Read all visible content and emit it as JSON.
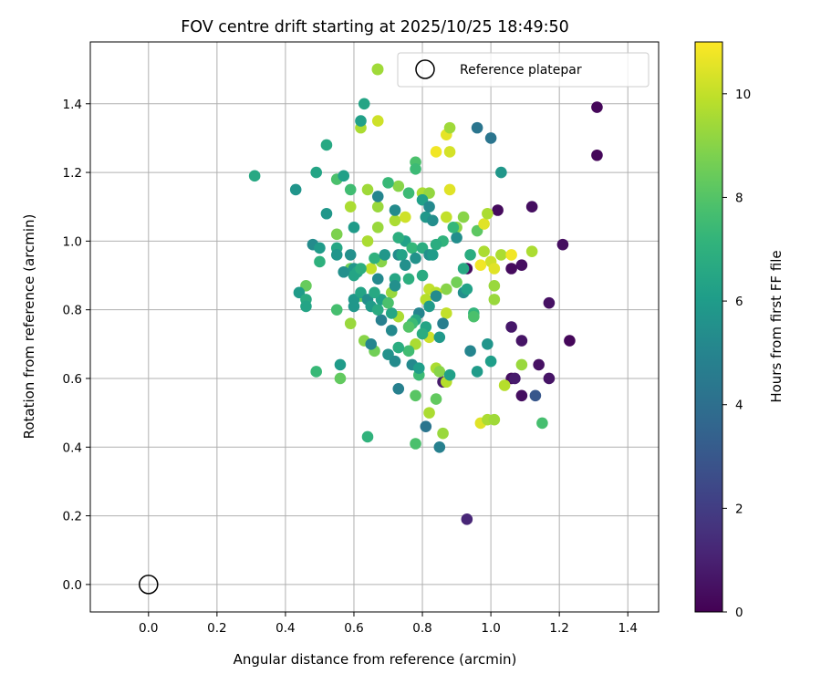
{
  "chart_data": {
    "type": "scatter",
    "title": "FOV centre drift starting at 2025/10/25 18:49:50",
    "xlabel": "Angular distance from reference (arcmin)",
    "ylabel": "Rotation from reference (arcmin)",
    "xlim": [
      -0.17,
      1.49
    ],
    "ylim": [
      -0.08,
      1.58
    ],
    "xticks": [
      "0.0",
      "0.2",
      "0.4",
      "0.6",
      "0.8",
      "1.0",
      "1.2",
      "1.4"
    ],
    "xtick_values": [
      0.0,
      0.2,
      0.4,
      0.6,
      0.8,
      1.0,
      1.2,
      1.4
    ],
    "yticks": [
      "0.0",
      "0.2",
      "0.4",
      "0.6",
      "0.8",
      "1.0",
      "1.2",
      "1.4"
    ],
    "ytick_values": [
      0.0,
      0.2,
      0.4,
      0.6,
      0.8,
      1.0,
      1.2,
      1.4
    ],
    "grid": true,
    "legend": {
      "placement": "top-right",
      "entries": [
        {
          "marker": "filled-circle",
          "color": "#a0da39",
          "label": ""
        },
        {
          "marker": "hollow-circle",
          "color": "#000000",
          "label": "Reference platepar"
        }
      ]
    },
    "colorbar": {
      "label": "Hours from first FF file",
      "colormap": "viridis",
      "range": [
        0,
        11
      ],
      "ticks": [
        "0",
        "2",
        "4",
        "6",
        "8",
        "10"
      ],
      "tick_values": [
        0,
        2,
        4,
        6,
        8,
        10
      ]
    },
    "reference_point": {
      "x": 0.0,
      "y": 0.0,
      "label": "Reference platepar"
    },
    "points": [
      [
        1.31,
        1.39,
        0.2
      ],
      [
        1.31,
        1.25,
        0.2
      ],
      [
        1.21,
        0.99,
        0.4
      ],
      [
        1.12,
        1.1,
        0.4
      ],
      [
        1.02,
        1.09,
        0.3
      ],
      [
        1.17,
        0.82,
        0.5
      ],
      [
        1.23,
        0.71,
        0.2
      ],
      [
        1.09,
        0.93,
        0.4
      ],
      [
        1.06,
        0.92,
        0.3
      ],
      [
        0.93,
        0.92,
        0.3
      ],
      [
        1.06,
        0.75,
        0.7
      ],
      [
        1.09,
        0.71,
        0.6
      ],
      [
        1.14,
        0.64,
        0.5
      ],
      [
        1.17,
        0.6,
        0.6
      ],
      [
        1.06,
        0.6,
        0.4
      ],
      [
        1.07,
        0.6,
        0.8
      ],
      [
        1.09,
        0.55,
        0.4
      ],
      [
        1.13,
        0.55,
        3.0
      ],
      [
        0.86,
        0.59,
        0.8
      ],
      [
        0.93,
        0.19,
        1.2
      ],
      [
        0.64,
        1.15,
        9.4
      ],
      [
        0.76,
        1.14,
        7.5
      ],
      [
        0.73,
        1.16,
        9.0
      ],
      [
        0.62,
        1.33,
        9.6
      ],
      [
        0.67,
        1.35,
        10.2
      ],
      [
        0.87,
        1.31,
        10.6
      ],
      [
        0.88,
        1.33,
        9.4
      ],
      [
        0.84,
        1.26,
        10.8
      ],
      [
        0.88,
        1.26,
        10.3
      ],
      [
        0.88,
        1.15,
        10.5
      ],
      [
        0.87,
        1.07,
        10.0
      ],
      [
        0.9,
        1.04,
        9.1
      ],
      [
        0.92,
        1.07,
        9.0
      ],
      [
        0.96,
        1.03,
        8.2
      ],
      [
        0.98,
        1.05,
        10.5
      ],
      [
        0.99,
        1.08,
        9.6
      ],
      [
        0.98,
        0.97,
        9.6
      ],
      [
        1.0,
        0.94,
        10.2
      ],
      [
        1.01,
        0.92,
        10.5
      ],
      [
        1.03,
        0.96,
        9.6
      ],
      [
        1.06,
        0.96,
        10.8
      ],
      [
        1.12,
        0.97,
        9.6
      ],
      [
        0.97,
        0.93,
        10.8
      ],
      [
        1.01,
        0.87,
        9.3
      ],
      [
        1.01,
        0.83,
        9.3
      ],
      [
        0.9,
        0.88,
        8.6
      ],
      [
        0.87,
        0.86,
        9.0
      ],
      [
        0.82,
        0.86,
        10.0
      ],
      [
        0.84,
        0.85,
        9.8
      ],
      [
        0.87,
        0.79,
        10.0
      ],
      [
        0.81,
        0.83,
        9.8
      ],
      [
        0.82,
        0.72,
        10.2
      ],
      [
        0.78,
        0.7,
        9.6
      ],
      [
        0.84,
        0.63,
        9.6
      ],
      [
        0.85,
        0.62,
        9.0
      ],
      [
        0.87,
        0.59,
        9.8
      ],
      [
        0.82,
        0.5,
        9.6
      ],
      [
        0.86,
        0.44,
        9.3
      ],
      [
        0.97,
        0.47,
        10.5
      ],
      [
        0.99,
        0.48,
        9.6
      ],
      [
        1.01,
        0.48,
        9.4
      ],
      [
        1.04,
        0.58,
        9.8
      ],
      [
        1.09,
        0.64,
        9.3
      ],
      [
        1.15,
        0.47,
        7.7
      ],
      [
        0.67,
        1.1,
        9.3
      ],
      [
        0.72,
        1.06,
        9.6
      ],
      [
        0.75,
        1.07,
        10.2
      ],
      [
        0.8,
        1.14,
        9.6
      ],
      [
        0.82,
        1.14,
        9.2
      ],
      [
        0.64,
        1.0,
        9.6
      ],
      [
        0.67,
        1.04,
        9.3
      ],
      [
        0.68,
        0.94,
        9.0
      ],
      [
        0.65,
        0.92,
        10.0
      ],
      [
        0.71,
        0.85,
        9.3
      ],
      [
        0.73,
        0.78,
        9.6
      ],
      [
        0.59,
        0.76,
        9.3
      ],
      [
        0.63,
        0.71,
        9.0
      ],
      [
        0.66,
        0.68,
        8.6
      ],
      [
        0.59,
        1.1,
        9.6
      ],
      [
        0.55,
        1.02,
        8.8
      ],
      [
        0.59,
        0.92,
        8.6
      ],
      [
        0.62,
        0.84,
        8.6
      ],
      [
        0.46,
        0.87,
        8.4
      ],
      [
        0.55,
        0.8,
        7.7
      ],
      [
        0.56,
        0.6,
        8.3
      ],
      [
        0.49,
        0.62,
        7.4
      ],
      [
        0.64,
        0.43,
        7.1
      ],
      [
        0.78,
        0.55,
        8.1
      ],
      [
        0.78,
        0.41,
        7.8
      ],
      [
        0.79,
        0.61,
        7.5
      ],
      [
        0.84,
        0.54,
        8.3
      ],
      [
        0.31,
        1.19,
        6.6
      ],
      [
        0.43,
        1.15,
        5.7
      ],
      [
        0.49,
        1.2,
        6.4
      ],
      [
        0.52,
        1.28,
        6.6
      ],
      [
        0.55,
        1.18,
        7.8
      ],
      [
        0.57,
        1.19,
        6.2
      ],
      [
        0.59,
        1.15,
        7.6
      ],
      [
        0.62,
        1.35,
        6.2
      ],
      [
        0.63,
        1.4,
        6.4
      ],
      [
        0.67,
        1.13,
        5.0
      ],
      [
        0.7,
        1.17,
        7.4
      ],
      [
        0.72,
        1.09,
        5.3
      ],
      [
        0.78,
        1.23,
        7.8
      ],
      [
        0.78,
        1.21,
        7.5
      ],
      [
        0.8,
        1.12,
        6.2
      ],
      [
        0.81,
        1.07,
        5.8
      ],
      [
        0.82,
        1.1,
        5.2
      ],
      [
        0.83,
        1.06,
        5.4
      ],
      [
        0.86,
        1.0,
        7.1
      ],
      [
        0.9,
        1.01,
        5.4
      ],
      [
        0.89,
        1.04,
        7.3
      ],
      [
        0.94,
        0.96,
        6.8
      ],
      [
        0.92,
        0.92,
        6.6
      ],
      [
        0.92,
        0.85,
        5.4
      ],
      [
        0.93,
        0.86,
        6.3
      ],
      [
        0.95,
        0.79,
        7.2
      ],
      [
        0.95,
        0.78,
        7.8
      ],
      [
        0.94,
        0.68,
        5.0
      ],
      [
        0.99,
        0.7,
        5.7
      ],
      [
        0.96,
        0.62,
        6.0
      ],
      [
        1.0,
        0.65,
        6.1
      ],
      [
        0.96,
        1.33,
        4.3
      ],
      [
        1.0,
        1.3,
        4.3
      ],
      [
        1.03,
        1.2,
        5.8
      ],
      [
        0.86,
        0.76,
        4.7
      ],
      [
        0.85,
        0.72,
        5.9
      ],
      [
        0.88,
        0.61,
        6.2
      ],
      [
        0.81,
        0.46,
        4.3
      ],
      [
        0.85,
        0.4,
        4.8
      ],
      [
        0.77,
        0.64,
        5.2
      ],
      [
        0.73,
        0.57,
        4.8
      ],
      [
        0.71,
        0.74,
        5.2
      ],
      [
        0.68,
        0.77,
        4.8
      ],
      [
        0.7,
        0.67,
        5.6
      ],
      [
        0.65,
        0.7,
        5.0
      ],
      [
        0.56,
        0.64,
        6.0
      ],
      [
        0.48,
        0.99,
        5.3
      ],
      [
        0.5,
        0.98,
        6.0
      ],
      [
        0.5,
        0.94,
        7.0
      ],
      [
        0.52,
        1.08,
        5.8
      ],
      [
        0.55,
        0.98,
        6.5
      ],
      [
        0.55,
        0.96,
        5.7
      ],
      [
        0.59,
        0.96,
        5.5
      ],
      [
        0.6,
        1.04,
        6.0
      ],
      [
        0.6,
        0.92,
        5.8
      ],
      [
        0.6,
        0.9,
        6.4
      ],
      [
        0.44,
        0.85,
        6.0
      ],
      [
        0.46,
        0.83,
        6.7
      ],
      [
        0.46,
        0.81,
        6.4
      ],
      [
        0.6,
        0.83,
        5.8
      ],
      [
        0.6,
        0.81,
        5.8
      ],
      [
        0.62,
        0.85,
        6.4
      ],
      [
        0.64,
        0.83,
        5.4
      ],
      [
        0.65,
        0.81,
        6.0
      ],
      [
        0.67,
        0.8,
        6.7
      ],
      [
        0.68,
        0.83,
        6.2
      ],
      [
        0.66,
        0.95,
        7.0
      ],
      [
        0.67,
        0.89,
        5.2
      ],
      [
        0.69,
        0.96,
        5.8
      ],
      [
        0.72,
        0.89,
        6.5
      ],
      [
        0.72,
        0.87,
        5.5
      ],
      [
        0.73,
        0.96,
        5.3
      ],
      [
        0.74,
        0.96,
        6.3
      ],
      [
        0.75,
        0.93,
        5.5
      ],
      [
        0.76,
        0.89,
        6.9
      ],
      [
        0.75,
        1.0,
        6.3
      ],
      [
        0.77,
        0.98,
        7.3
      ],
      [
        0.78,
        0.95,
        5.6
      ],
      [
        0.8,
        0.98,
        6.8
      ],
      [
        0.8,
        0.9,
        6.7
      ],
      [
        0.82,
        0.96,
        5.5
      ],
      [
        0.83,
        0.96,
        6.0
      ],
      [
        0.84,
        0.99,
        6.8
      ],
      [
        0.84,
        0.84,
        5.3
      ],
      [
        0.82,
        0.81,
        6.0
      ],
      [
        0.79,
        0.79,
        5.0
      ],
      [
        0.78,
        0.77,
        6.6
      ],
      [
        0.77,
        0.76,
        7.5
      ],
      [
        0.76,
        0.75,
        8.0
      ],
      [
        0.81,
        0.75,
        6.4
      ],
      [
        0.8,
        0.73,
        6.8
      ],
      [
        0.76,
        0.68,
        7.6
      ],
      [
        0.73,
        0.69,
        6.8
      ],
      [
        0.72,
        0.65,
        5.3
      ],
      [
        0.71,
        0.79,
        6.5
      ],
      [
        0.79,
        0.63,
        6.1
      ],
      [
        0.61,
        0.91,
        6.4
      ],
      [
        0.57,
        0.91,
        5.5
      ],
      [
        0.62,
        0.92,
        6.9
      ],
      [
        0.66,
        0.85,
        6.6
      ],
      [
        0.7,
        0.82,
        7.8
      ],
      [
        0.73,
        1.01,
        6.9
      ]
    ]
  }
}
